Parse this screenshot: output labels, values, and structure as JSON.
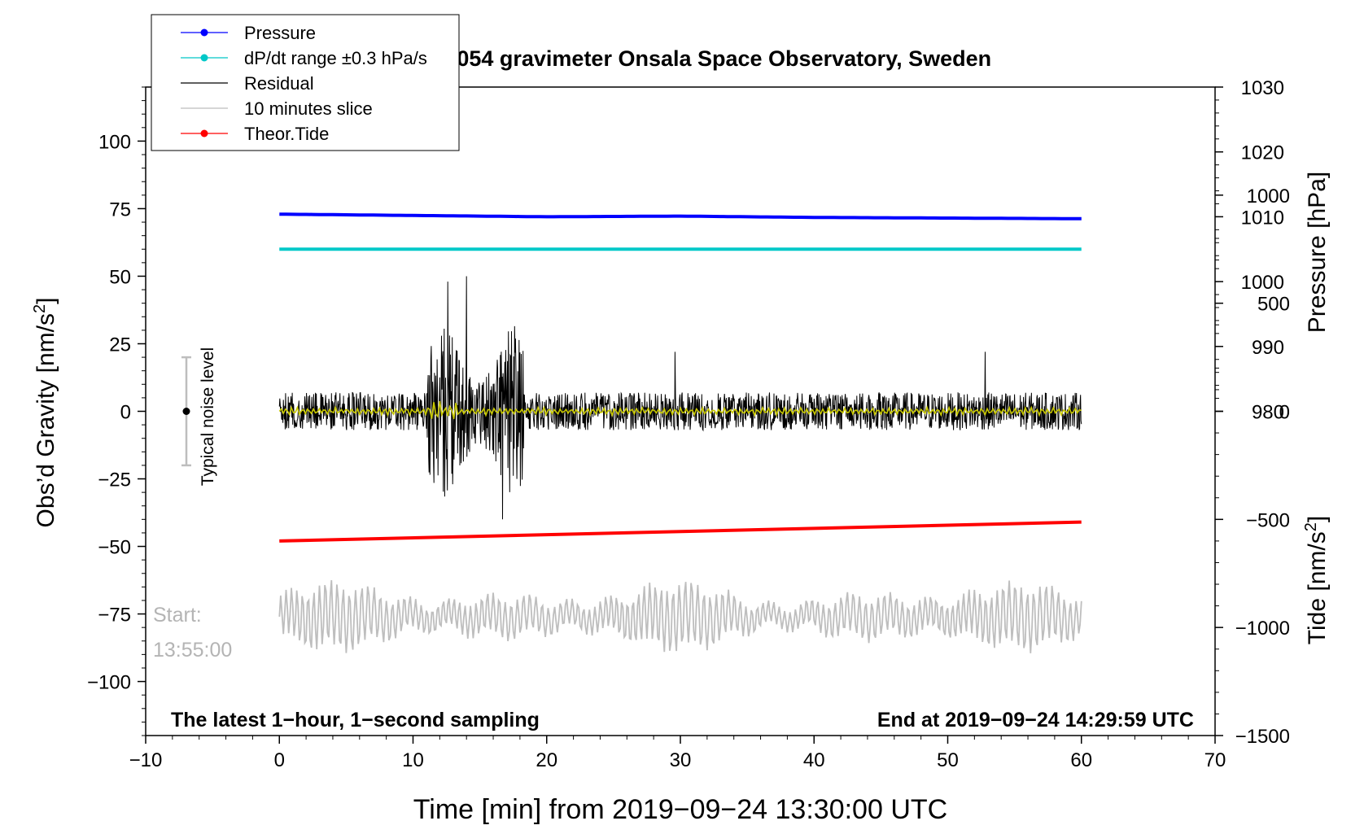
{
  "chart_data": {
    "type": "line",
    "title": "SCG_054 gravimeter Onsala Space Observatory, Sweden",
    "xlabel": "Time [min] from 2019−09−24 13:30:00 UTC",
    "ylabel_left": "Obs’d Gravity [nm/s",
    "ylabel_left_sup": "2",
    "ylabel_left_close": "]",
    "ylabel_right_pressure": "Pressure [hPa]",
    "ylabel_right_tide": "Tide [nm/s",
    "ylabel_right_tide_sup": "2",
    "ylabel_right_tide_close": "]",
    "xlim": [
      -10,
      70
    ],
    "ylim": [
      -120,
      120
    ],
    "x_ticks": [
      -10,
      0,
      10,
      20,
      30,
      40,
      50,
      60,
      70
    ],
    "x_tick_labels": [
      "−10",
      "0",
      "10",
      "20",
      "30",
      "40",
      "50",
      "60",
      "70"
    ],
    "y_left_ticks": [
      100,
      75,
      50,
      25,
      0,
      -25,
      -50,
      -75,
      -100
    ],
    "y_left_tick_labels": [
      "100",
      "75",
      "50",
      "25",
      "0",
      "−25",
      "−50",
      "−75",
      "−100"
    ],
    "pressure_axis": {
      "ticks": [
        1030,
        1020,
        1010,
        1000,
        990,
        980
      ],
      "tick_labels": [
        "1030",
        "1020",
        "1010",
        "1000",
        "990",
        "980"
      ],
      "range": [
        930,
        1030
      ]
    },
    "tide_axis": {
      "ticks": [
        1000,
        500,
        0,
        -500,
        -1000,
        -1500
      ],
      "tick_labels": [
        "1000",
        "500",
        "0",
        "−500",
        "−1000",
        "−1500"
      ],
      "range": [
        -1500,
        1500
      ]
    },
    "legend": {
      "position": "top-left",
      "entries": [
        {
          "label": "Pressure",
          "color": "#0000ff",
          "marker": true
        },
        {
          "label": "dP/dt range ±0.3 hPa/s",
          "color": "#00c8c8",
          "marker": true
        },
        {
          "label": "Residual",
          "color": "#000000",
          "marker": false
        },
        {
          "label": "10 minutes slice",
          "color": "#bebebe",
          "marker": false
        },
        {
          "label": "Theor.Tide",
          "color": "#ff0000",
          "marker": true
        }
      ]
    },
    "series": [
      {
        "name": "Pressure",
        "axis": "pressure",
        "color": "#0000ff",
        "x": [
          0,
          10,
          20,
          30,
          40,
          50,
          60
        ],
        "values": [
          1010.4,
          1010.2,
          1010.0,
          1010.1,
          1009.9,
          1009.8,
          1009.7
        ]
      },
      {
        "name": "dP/dt range ±0.3 hPa/s",
        "axis": "gravity",
        "color": "#00c8c8",
        "x": [
          0,
          60
        ],
        "values": [
          60,
          60
        ]
      },
      {
        "name": "Theor.Tide",
        "axis": "gravity",
        "color": "#ff0000",
        "x": [
          0,
          60
        ],
        "values": [
          -48,
          -41
        ]
      },
      {
        "name": "Residual",
        "axis": "gravity",
        "color": "#000000",
        "x": [
          0,
          60
        ],
        "baseline": 0,
        "typical_amplitude": 7,
        "extremes": [
          {
            "x": 12.6,
            "min": -54,
            "max": 48
          },
          {
            "x": 14.0,
            "min": -52,
            "max": 50
          },
          {
            "x": 16.7,
            "min": -40,
            "max": 41
          },
          {
            "x": 29.6,
            "min": -12,
            "max": 22
          },
          {
            "x": 52.8,
            "min": -17,
            "max": 22
          }
        ]
      },
      {
        "name": "10 minutes slice",
        "axis": "gravity",
        "color": "#bebebe",
        "x": [
          0,
          60
        ],
        "baseline": -76,
        "typical_amplitude": 8
      },
      {
        "name": "Smoothed residual",
        "axis": "gravity",
        "color": "#c8c800",
        "x": [
          0,
          60
        ],
        "baseline": 0,
        "typical_amplitude": 1.5
      }
    ],
    "noise_indicator": {
      "label": "Typical noise level",
      "x": -7,
      "center": 0,
      "min": -20,
      "max": 20
    },
    "annotations": {
      "start_label": "Start:",
      "start_time": "13:55:00",
      "bottom_left": "The latest 1−hour, 1−second sampling",
      "bottom_right": "End at 2019−09−24 14:29:59 UTC"
    },
    "grid": false
  }
}
